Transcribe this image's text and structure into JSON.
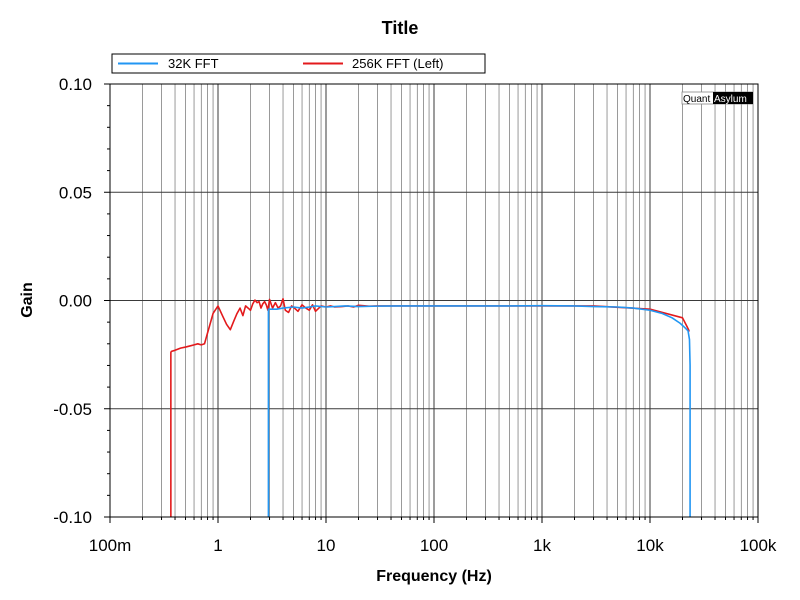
{
  "chart_data": {
    "type": "line",
    "title": "Title",
    "xlabel": "Frequency (Hz)",
    "ylabel": "Gain",
    "x_scale": "log",
    "xlim": [
      0.1,
      100000
    ],
    "ylim": [
      -0.1,
      0.1
    ],
    "x_tick_labels": [
      "100m",
      "1",
      "10",
      "100",
      "1k",
      "10k",
      "100k"
    ],
    "x_tick_values": [
      0.1,
      1,
      10,
      100,
      1000,
      10000,
      100000
    ],
    "y_tick_labels": [
      "0.10",
      "0.05",
      "0.00",
      "-0.05",
      "-0.10"
    ],
    "y_tick_values": [
      0.1,
      0.05,
      0.0,
      -0.05,
      -0.1
    ],
    "grid": true,
    "legend_position": "top",
    "watermark": {
      "part1": "Quant",
      "part2": "Asylum"
    },
    "series": [
      {
        "name": "32K FFT",
        "color": "#2196f3",
        "x": [
          2.93,
          2.93,
          2.95,
          3.0,
          3.5,
          4.0,
          5.0,
          6.0,
          7.0,
          8.0,
          10.0,
          12.0,
          15.0,
          20.0,
          30.0,
          50.0,
          100.0,
          200.0,
          500.0,
          1000.0,
          2000.0,
          3000.0,
          5000.0,
          7000.0,
          10000.0,
          13000.0,
          16000.0,
          19000.0,
          21000.0,
          22500.0,
          23200.0,
          23500.0,
          23500.0
        ],
        "y": [
          -0.1,
          -0.004,
          -0.004,
          -0.004,
          -0.004,
          -0.0035,
          -0.003,
          -0.0035,
          -0.003,
          -0.0025,
          -0.003,
          -0.0028,
          -0.0025,
          -0.0028,
          -0.0026,
          -0.0025,
          -0.0025,
          -0.0025,
          -0.0025,
          -0.0024,
          -0.0025,
          -0.0028,
          -0.003,
          -0.0035,
          -0.0045,
          -0.006,
          -0.008,
          -0.0105,
          -0.0125,
          -0.014,
          -0.018,
          -0.03,
          -0.1
        ]
      },
      {
        "name": "256K FFT (Left)",
        "color": "#e31a1c",
        "x": [
          0.366,
          0.366,
          0.37,
          0.4,
          0.45,
          0.5,
          0.55,
          0.6,
          0.65,
          0.7,
          0.75,
          0.8,
          0.9,
          1.0,
          1.1,
          1.2,
          1.3,
          1.4,
          1.5,
          1.6,
          1.7,
          1.8,
          1.9,
          2.0,
          2.1,
          2.2,
          2.3,
          2.4,
          2.5,
          2.6,
          2.7,
          2.8,
          2.9,
          3.0,
          3.2,
          3.4,
          3.6,
          3.8,
          4.0,
          4.2,
          4.5,
          4.8,
          5.1,
          5.5,
          6.0,
          6.5,
          7.0,
          7.5,
          8.0,
          9.0,
          10.0,
          11.0,
          12.0,
          14.0,
          16.0,
          18.0,
          20.0,
          25.0,
          30.0,
          50.0,
          100.0,
          300.0,
          1000.0,
          3000.0,
          10000.0,
          20000.0,
          22000.0,
          23000.0,
          23300.0
        ],
        "y": [
          -0.1,
          -0.024,
          -0.0235,
          -0.023,
          -0.022,
          -0.0215,
          -0.021,
          -0.0205,
          -0.02,
          -0.0205,
          -0.02,
          -0.015,
          -0.006,
          -0.0025,
          -0.007,
          -0.011,
          -0.0135,
          -0.0095,
          -0.006,
          -0.0035,
          -0.007,
          -0.0025,
          -0.0035,
          -0.0045,
          -0.0015,
          0.0002,
          -0.001,
          -0.0005,
          -0.0035,
          -0.0015,
          -0.0005,
          -0.002,
          -0.0045,
          0.0005,
          -0.0035,
          -0.001,
          -0.0035,
          -0.0025,
          0.0008,
          -0.0045,
          -0.0055,
          -0.0025,
          -0.0035,
          -0.005,
          -0.002,
          -0.0035,
          -0.0045,
          -0.002,
          -0.005,
          -0.0025,
          -0.003,
          -0.0025,
          -0.003,
          -0.0028,
          -0.0025,
          -0.003,
          -0.0022,
          -0.0026,
          -0.0025,
          -0.0025,
          -0.0025,
          -0.0025,
          -0.0025,
          -0.0025,
          -0.004,
          -0.008,
          -0.012,
          -0.014,
          -0.014
        ]
      }
    ]
  }
}
